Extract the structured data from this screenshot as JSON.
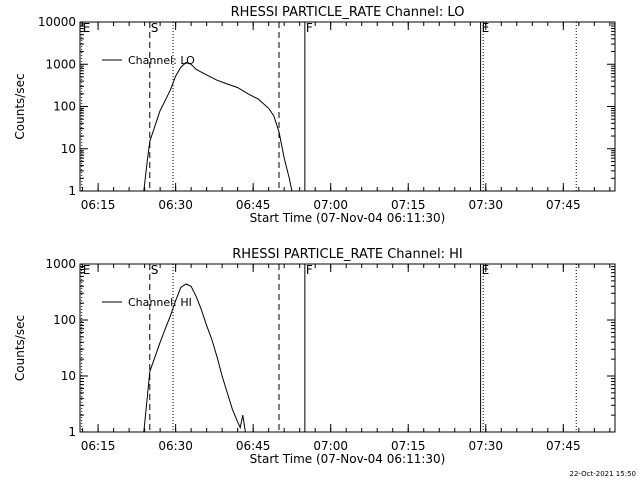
{
  "footer_timestamp": "22-Oct-2021 15:50",
  "colors": {
    "background": "#ffffff",
    "ink": "#000000"
  },
  "chart_data": [
    {
      "type": "line",
      "title": "RHESSI PARTICLE_RATE Channel: LO",
      "xlabel": "Start Time (07-Nov-04 06:11:30)",
      "ylabel": "Counts/sec",
      "y_scale": "log",
      "ylim": [
        1,
        10000
      ],
      "xlim": [
        "06:11:30",
        "07:55:00"
      ],
      "yticks": [
        1,
        10,
        100,
        1000,
        10000
      ],
      "ytick_labels": [
        "1",
        "10",
        "100",
        "1000",
        "10000"
      ],
      "xticks": [
        "06:15",
        "06:30",
        "06:45",
        "07:00",
        "07:15",
        "07:30",
        "07:45"
      ],
      "legend": {
        "label": "Channel: LO",
        "position": "top-left"
      },
      "markers": [
        {
          "time": "06:11:50",
          "style": "dotted",
          "label": "E"
        },
        {
          "time": "06:25:00",
          "style": "dashed",
          "label": "S"
        },
        {
          "time": "06:29:30",
          "style": "dotted",
          "label": ""
        },
        {
          "time": "06:50:00",
          "style": "dashed",
          "label": ""
        },
        {
          "time": "06:55:00",
          "style": "solid",
          "label": "F"
        },
        {
          "time": "07:29:00",
          "style": "solid",
          "label": "E"
        },
        {
          "time": "07:29:30",
          "style": "dotted",
          "label": ""
        },
        {
          "time": "07:47:30",
          "style": "dotted",
          "label": ""
        }
      ],
      "series": [
        {
          "name": "Channel: LO",
          "x": [
            "06:23:50",
            "06:24:30",
            "06:25:00",
            "06:26:00",
            "06:27:00",
            "06:28:00",
            "06:29:00",
            "06:30:00",
            "06:31:00",
            "06:32:00",
            "06:33:00",
            "06:34:00",
            "06:36:00",
            "06:38:00",
            "06:40:00",
            "06:42:00",
            "06:44:00",
            "06:46:00",
            "06:48:00",
            "06:49:00",
            "06:50:00",
            "06:51:00",
            "06:52:00",
            "06:52:30"
          ],
          "y": [
            1,
            5,
            15,
            35,
            80,
            140,
            250,
            520,
            850,
            1100,
            1000,
            750,
            560,
            420,
            340,
            280,
            200,
            150,
            90,
            60,
            25,
            6,
            2,
            1
          ]
        }
      ]
    },
    {
      "type": "line",
      "title": "RHESSI PARTICLE_RATE Channel: HI",
      "xlabel": "Start Time (07-Nov-04 06:11:30)",
      "ylabel": "Counts/sec",
      "y_scale": "log",
      "ylim": [
        1,
        1000
      ],
      "xlim": [
        "06:11:30",
        "07:55:00"
      ],
      "yticks": [
        1,
        10,
        100,
        1000
      ],
      "ytick_labels": [
        "1",
        "10",
        "100",
        "1000"
      ],
      "xticks": [
        "06:15",
        "06:30",
        "06:45",
        "07:00",
        "07:15",
        "07:30",
        "07:45"
      ],
      "legend": {
        "label": "Channel: HI",
        "position": "top-left"
      },
      "markers": [
        {
          "time": "06:11:50",
          "style": "dotted",
          "label": "E"
        },
        {
          "time": "06:25:00",
          "style": "dashed",
          "label": "S"
        },
        {
          "time": "06:29:30",
          "style": "dotted",
          "label": ""
        },
        {
          "time": "06:50:00",
          "style": "dashed",
          "label": ""
        },
        {
          "time": "06:55:00",
          "style": "solid",
          "label": "F"
        },
        {
          "time": "07:29:00",
          "style": "solid",
          "label": "E"
        },
        {
          "time": "07:29:30",
          "style": "dotted",
          "label": ""
        },
        {
          "time": "07:47:30",
          "style": "dotted",
          "label": ""
        }
      ],
      "series": [
        {
          "name": "Channel: HI",
          "x": [
            "06:23:50",
            "06:24:30",
            "06:25:00",
            "06:26:00",
            "06:27:00",
            "06:28:00",
            "06:29:00",
            "06:30:00",
            "06:31:00",
            "06:32:00",
            "06:33:00",
            "06:34:00",
            "06:35:00",
            "06:36:00",
            "06:37:00",
            "06:38:00",
            "06:39:00",
            "06:40:00",
            "06:41:00",
            "06:42:00",
            "06:42:30",
            "06:43:00",
            "06:43:30"
          ],
          "y": [
            1,
            4,
            12,
            22,
            40,
            70,
            120,
            220,
            380,
            440,
            400,
            260,
            150,
            80,
            45,
            22,
            10,
            5,
            2.5,
            1.5,
            1.2,
            2,
            1
          ]
        }
      ]
    }
  ]
}
